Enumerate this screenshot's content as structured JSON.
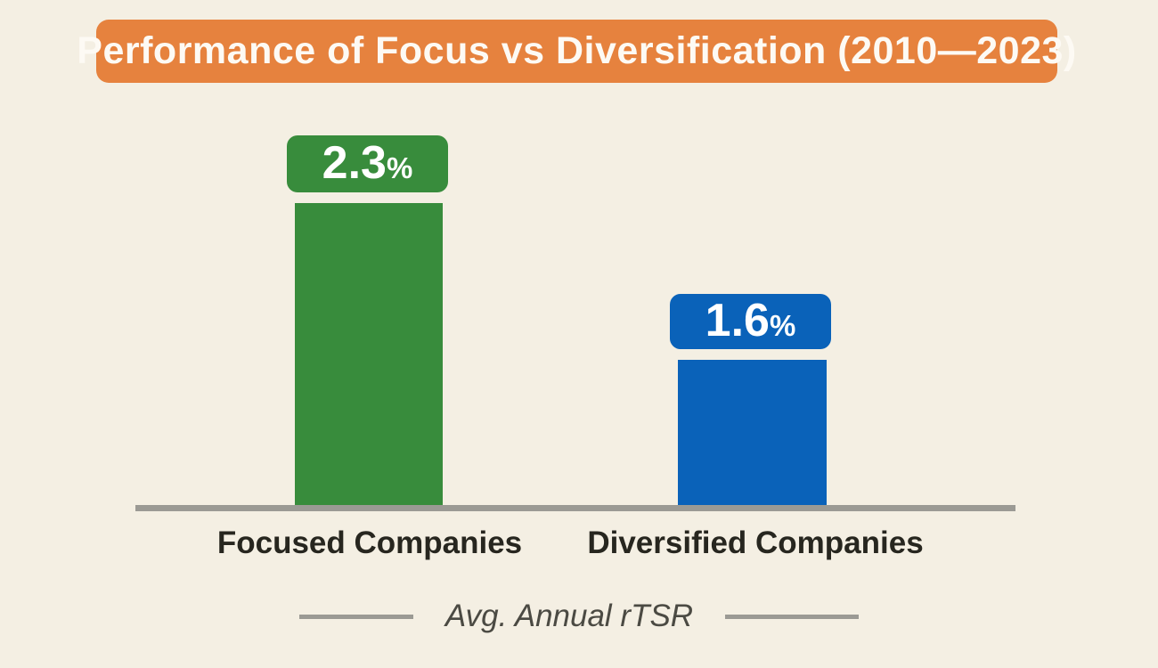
{
  "title": "Performance of Focus vs Diversification (2010—2023)",
  "chart_data": {
    "type": "bar",
    "title": "Performance of Focus vs Diversification (2010—2023)",
    "categories": [
      "Focused Companies",
      "Diversified Companies"
    ],
    "values": [
      2.3,
      1.6
    ],
    "value_labels": [
      "2.3",
      "1.6"
    ],
    "unit": "%",
    "footer_label": "Avg. Annual rTSR",
    "series_colors": [
      "#388c3c",
      "#0a62b9"
    ],
    "accent_color": "#e6823e",
    "background_color": "#f4efe3",
    "baseline_color": "#9b9a94",
    "grid": false,
    "legend_position": "none",
    "ylabel": "",
    "xlabel": ""
  }
}
